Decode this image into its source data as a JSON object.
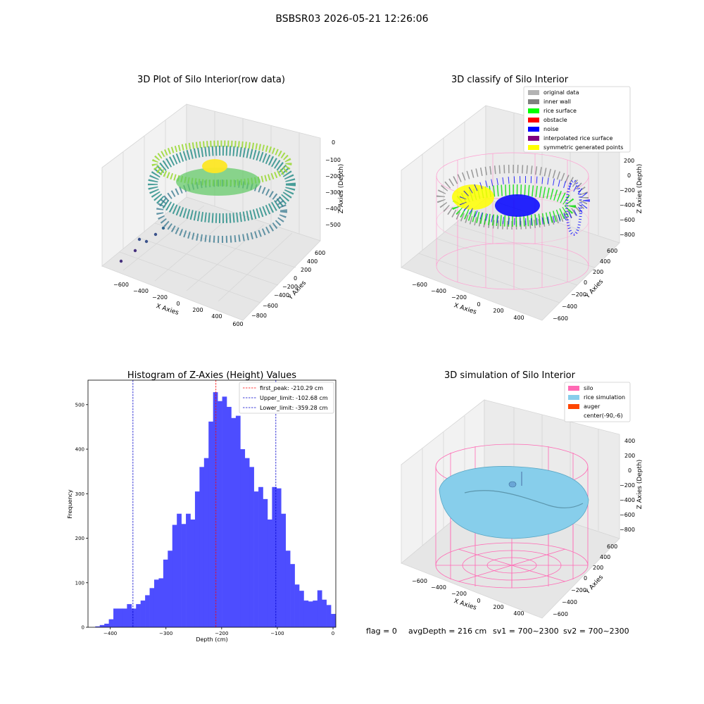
{
  "suptitle": "BSBSR03 2026-05-21 12:26:06",
  "status_line": {
    "flag": "flag = 0",
    "avg_depth": "avgDepth = 216 cm",
    "sv1": "sv1 = 700~2300",
    "sv2": "sv2 = 700~2300"
  },
  "colors": {
    "hist_bar": "#4d4dff",
    "peak_line": "#ff0000",
    "limit_line": "#0000cc",
    "original": "#b3b3b3",
    "inner_wall": "#808080",
    "rice_surface": "#00ff00",
    "obstacle": "#ff0000",
    "noise": "#0000ff",
    "interpolated": "#800080",
    "symmetric": "#ffff00",
    "silo": "#ff69b4",
    "rice_sim": "#87ceeb",
    "auger": "#ff4500"
  },
  "chart_data": [
    {
      "type": "scatter",
      "title": "3D Plot of Silo Interior(row data)",
      "xlabel": "X Axies",
      "ylabel": "Y Axies",
      "zlabel": "Z Axies (Depth)",
      "x_ticks": [
        "−600",
        "−400",
        "−200",
        "0",
        "200",
        "400",
        "600"
      ],
      "y_ticks": [
        "−800",
        "−600",
        "−400",
        "−200",
        "0",
        "200",
        "400",
        "600"
      ],
      "z_ticks": [
        "0",
        "−100",
        "−200",
        "−300",
        "−400",
        "−500"
      ],
      "colormap": "viridis"
    },
    {
      "type": "scatter",
      "title": "3D classify of Silo Interior",
      "xlabel": "X Axies",
      "ylabel": "Y Axies",
      "zlabel": "Z Axies (Depth)",
      "x_ticks": [
        "−600",
        "−400",
        "−200",
        "0",
        "200",
        "400"
      ],
      "y_ticks": [
        "−600",
        "−400",
        "−200",
        "0",
        "200",
        "400",
        "600"
      ],
      "z_ticks": [
        "200",
        "0",
        "−200",
        "−400",
        "−600",
        "−800"
      ],
      "legend": [
        "original data",
        "inner wall",
        "rice surface",
        "obstacle",
        "noise",
        "interpolated rice surface",
        "symmetric generated points"
      ],
      "legend_position": "top-right"
    },
    {
      "type": "bar",
      "title": "Histogram of Z-Axies (Height) Values",
      "xlabel": "Depth (cm)",
      "ylabel": "Frequency",
      "xlim": [
        -440,
        5
      ],
      "ylim": [
        0,
        555
      ],
      "x_ticks": [
        -400,
        -300,
        -200,
        -100,
        0
      ],
      "x_tick_labels": [
        "−400",
        "−300",
        "−200",
        "−100",
        "0"
      ],
      "y_ticks": [
        0,
        100,
        200,
        300,
        400,
        500
      ],
      "y_tick_labels": [
        "0",
        "100",
        "200",
        "300",
        "400",
        "500"
      ],
      "bin_start": -427,
      "bin_width": 8.14,
      "values": [
        2,
        5,
        8,
        18,
        42,
        42,
        42,
        52,
        42,
        52,
        60,
        72,
        88,
        107,
        110,
        152,
        172,
        230,
        255,
        232,
        255,
        242,
        305,
        360,
        380,
        462,
        528,
        508,
        518,
        495,
        470,
        475,
        400,
        380,
        360,
        305,
        315,
        288,
        242,
        315,
        312,
        255,
        172,
        142,
        96,
        82,
        60,
        58,
        60,
        83,
        62,
        50,
        30,
        20,
        9,
        13
      ],
      "vlines": [
        {
          "label": "first_peak: -210.29 cm",
          "x": -210.29,
          "style": "peak"
        },
        {
          "label": "Upper_limit: -102.68 cm",
          "x": -102.68,
          "style": "limit"
        },
        {
          "label": "Lower_limit: -359.28 cm",
          "x": -359.28,
          "style": "limit"
        }
      ],
      "legend_position": "top-right"
    },
    {
      "type": "surface",
      "title": "3D simulation of Silo Interior",
      "xlabel": "X Axies",
      "ylabel": "Y Axies",
      "zlabel": "Z Axies (Depth)",
      "x_ticks": [
        "−600",
        "−400",
        "−200",
        "0",
        "200",
        "400"
      ],
      "y_ticks": [
        "−600",
        "−400",
        "−200",
        "0",
        "200",
        "400",
        "600"
      ],
      "z_ticks": [
        "400",
        "200",
        "0",
        "−200",
        "−400",
        "−600",
        "−800"
      ],
      "legend": [
        "silo",
        "rice simulation",
        "auger",
        "center(-90,-6)"
      ],
      "legend_position": "top-right"
    }
  ]
}
